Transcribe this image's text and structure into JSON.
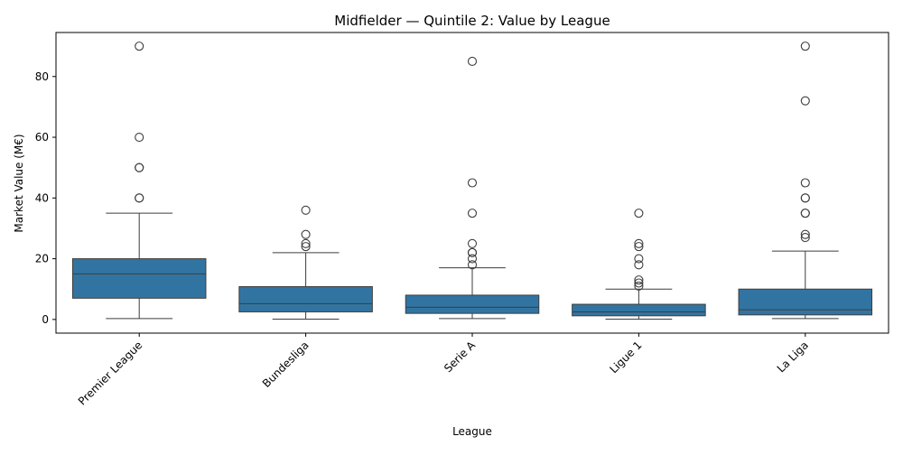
{
  "chart_data": {
    "type": "box",
    "title": "Midfielder — Quintile 2: Value by League",
    "xlabel": "League",
    "ylabel": "Market Value (M€)",
    "ylim": [
      -4.5,
      94.5
    ],
    "y_ticks": [
      0,
      20,
      40,
      60,
      80
    ],
    "grid": false,
    "box_color": "#3274a1",
    "categories": [
      "Premier League",
      "Bundesliga",
      "Serie A",
      "Ligue 1",
      "La Liga"
    ],
    "boxes": [
      {
        "category": "Premier League",
        "whisker_low": 0.3,
        "q1": 7,
        "median": 15,
        "q3": 20,
        "whisker_high": 35,
        "outliers": [
          40,
          40,
          50,
          50,
          60,
          90
        ]
      },
      {
        "category": "Bundesliga",
        "whisker_low": 0.1,
        "q1": 2.5,
        "median": 5.2,
        "q3": 10.8,
        "whisker_high": 22,
        "outliers": [
          24,
          25,
          28,
          36
        ]
      },
      {
        "category": "Serie A",
        "whisker_low": 0.3,
        "q1": 2,
        "median": 4,
        "q3": 8,
        "whisker_high": 17,
        "outliers": [
          18,
          20,
          22,
          22,
          25,
          35,
          45,
          85
        ]
      },
      {
        "category": "Ligue 1",
        "whisker_low": 0.1,
        "q1": 1.2,
        "median": 2.5,
        "q3": 5,
        "whisker_high": 10,
        "outliers": [
          11,
          12,
          13,
          18,
          20,
          24,
          25,
          35
        ]
      },
      {
        "category": "La Liga",
        "whisker_low": 0.3,
        "q1": 1.5,
        "median": 3.2,
        "q3": 10,
        "whisker_high": 22.5,
        "outliers": [
          27,
          28,
          35,
          35,
          40,
          40,
          45,
          72,
          90
        ]
      }
    ]
  }
}
